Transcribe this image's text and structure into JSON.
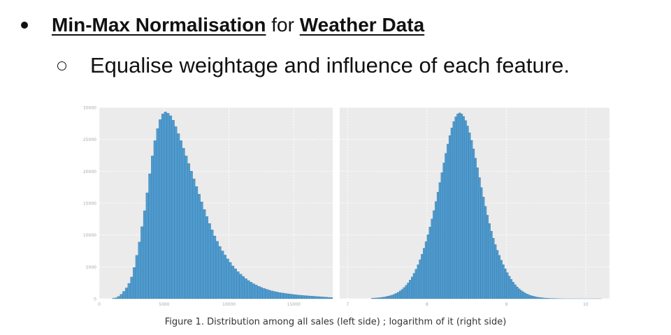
{
  "slide": {
    "bullet1": {
      "part1": "Min-Max Normalisation",
      "part2": " for ",
      "part3": "Weather Data"
    },
    "bullet2": "Equalise weightage and influence of each feature.",
    "caption": "Figure 1. Distribution among all sales (left side) ; logarithm of it (right side)"
  },
  "colors": {
    "bar": "#4f9bcf",
    "panel": "#ebebeb",
    "grid": "#ffffff",
    "tick": "#aaaaaa"
  },
  "chart_data": [
    {
      "type": "bar",
      "title": "",
      "xlabel": "",
      "ylabel": "",
      "xlim": [
        0,
        18000
      ],
      "ylim": [
        0,
        30000
      ],
      "xticks": [
        0,
        5000,
        10000,
        15000
      ],
      "yticks": [
        0,
        5000,
        10000,
        15000,
        20000,
        25000,
        30000
      ],
      "grid": true,
      "bin_width": 200,
      "x": [
        1000,
        1200,
        1400,
        1600,
        1800,
        2000,
        2200,
        2400,
        2600,
        2800,
        3000,
        3200,
        3400,
        3600,
        3800,
        4000,
        4200,
        4400,
        4600,
        4800,
        5000,
        5200,
        5400,
        5600,
        5800,
        6000,
        6200,
        6400,
        6600,
        6800,
        7000,
        7200,
        7400,
        7600,
        7800,
        8000,
        8200,
        8400,
        8600,
        8800,
        9000,
        9200,
        9400,
        9600,
        9800,
        10000,
        10200,
        10400,
        10600,
        10800,
        11000,
        11200,
        11400,
        11600,
        11800,
        12000,
        12200,
        12400,
        12600,
        12800,
        13000,
        13200,
        13400,
        13600,
        13800,
        14000,
        14200,
        14400,
        14600,
        14800,
        15000,
        15200,
        15400,
        15600,
        15800,
        16000,
        16200,
        16400,
        16600,
        16800,
        17000,
        17200,
        17400,
        17600,
        17800
      ],
      "values": [
        60,
        150,
        350,
        700,
        1150,
        1700,
        2400,
        3400,
        4900,
        6800,
        8900,
        11300,
        13800,
        16600,
        19600,
        22400,
        24800,
        26700,
        28100,
        29000,
        29300,
        29100,
        28700,
        28000,
        27000,
        25900,
        24800,
        23600,
        22400,
        21200,
        20000,
        18800,
        17600,
        16400,
        15200,
        14000,
        12900,
        11800,
        10800,
        9850,
        9000,
        8200,
        7500,
        6850,
        6250,
        5700,
        5150,
        4700,
        4250,
        3850,
        3500,
        3150,
        2850,
        2600,
        2350,
        2150,
        1950,
        1780,
        1620,
        1480,
        1350,
        1240,
        1140,
        1050,
        970,
        900,
        840,
        780,
        730,
        680,
        630,
        590,
        550,
        510,
        480,
        450,
        420,
        390,
        360,
        330,
        300,
        270,
        240,
        210,
        180
      ]
    },
    {
      "type": "bar",
      "title": "",
      "xlabel": "",
      "ylabel": "",
      "xlim": [
        6.9,
        10.3
      ],
      "ylim": [
        0,
        30000
      ],
      "xticks": [
        7,
        8,
        9,
        10
      ],
      "yticks": [
        0,
        5000,
        10000,
        15000,
        20000,
        25000,
        30000
      ],
      "grid": true,
      "bin_width": 0.025,
      "x": [
        7.3,
        7.325,
        7.35,
        7.375,
        7.4,
        7.425,
        7.45,
        7.475,
        7.5,
        7.525,
        7.55,
        7.575,
        7.6,
        7.625,
        7.65,
        7.675,
        7.7,
        7.725,
        7.75,
        7.775,
        7.8,
        7.825,
        7.85,
        7.875,
        7.9,
        7.925,
        7.95,
        7.975,
        8.0,
        8.025,
        8.05,
        8.075,
        8.1,
        8.125,
        8.15,
        8.175,
        8.2,
        8.225,
        8.25,
        8.275,
        8.3,
        8.325,
        8.35,
        8.375,
        8.4,
        8.425,
        8.45,
        8.475,
        8.5,
        8.525,
        8.55,
        8.575,
        8.6,
        8.625,
        8.65,
        8.675,
        8.7,
        8.725,
        8.75,
        8.775,
        8.8,
        8.825,
        8.85,
        8.875,
        8.9,
        8.925,
        8.95,
        8.975,
        9.0,
        9.025,
        9.05,
        9.075,
        9.1,
        9.125,
        9.15,
        9.175,
        9.2,
        9.225,
        9.25,
        9.275,
        9.3,
        9.325,
        9.35,
        9.375,
        9.4,
        9.425,
        9.45,
        9.475,
        9.5,
        9.525,
        9.55,
        9.575,
        9.6,
        9.625,
        9.65,
        9.675,
        9.7,
        9.725,
        9.75,
        9.775,
        9.8,
        9.825,
        9.85,
        9.875,
        9.9,
        9.925,
        9.95,
        9.975,
        10.0,
        10.025,
        10.05,
        10.075,
        10.1,
        10.125,
        10.15,
        10.175
      ],
      "values": [
        80,
        100,
        120,
        150,
        180,
        220,
        270,
        330,
        400,
        480,
        580,
        700,
        850,
        1020,
        1230,
        1470,
        1760,
        2100,
        2480,
        2920,
        3420,
        3990,
        4620,
        5330,
        6120,
        6980,
        7920,
        8950,
        10050,
        11240,
        12500,
        13840,
        15250,
        16720,
        18230,
        19770,
        21300,
        22810,
        24250,
        25600,
        26800,
        27800,
        28550,
        29000,
        29150,
        29000,
        28600,
        27950,
        27100,
        26050,
        24850,
        23500,
        22050,
        20550,
        19000,
        17450,
        15950,
        14500,
        13100,
        11800,
        10600,
        9500,
        8500,
        7600,
        6800,
        6050,
        5350,
        4700,
        4100,
        3550,
        3050,
        2600,
        2200,
        1850,
        1550,
        1300,
        1080,
        890,
        730,
        600,
        490,
        400,
        320,
        260,
        210,
        170,
        130,
        100,
        80,
        60,
        40,
        30,
        20,
        15,
        10,
        5,
        3,
        2,
        1,
        1,
        1,
        1,
        1,
        1,
        1,
        1,
        1,
        1,
        1,
        1,
        1,
        1,
        1,
        1,
        1,
        1
      ]
    }
  ]
}
